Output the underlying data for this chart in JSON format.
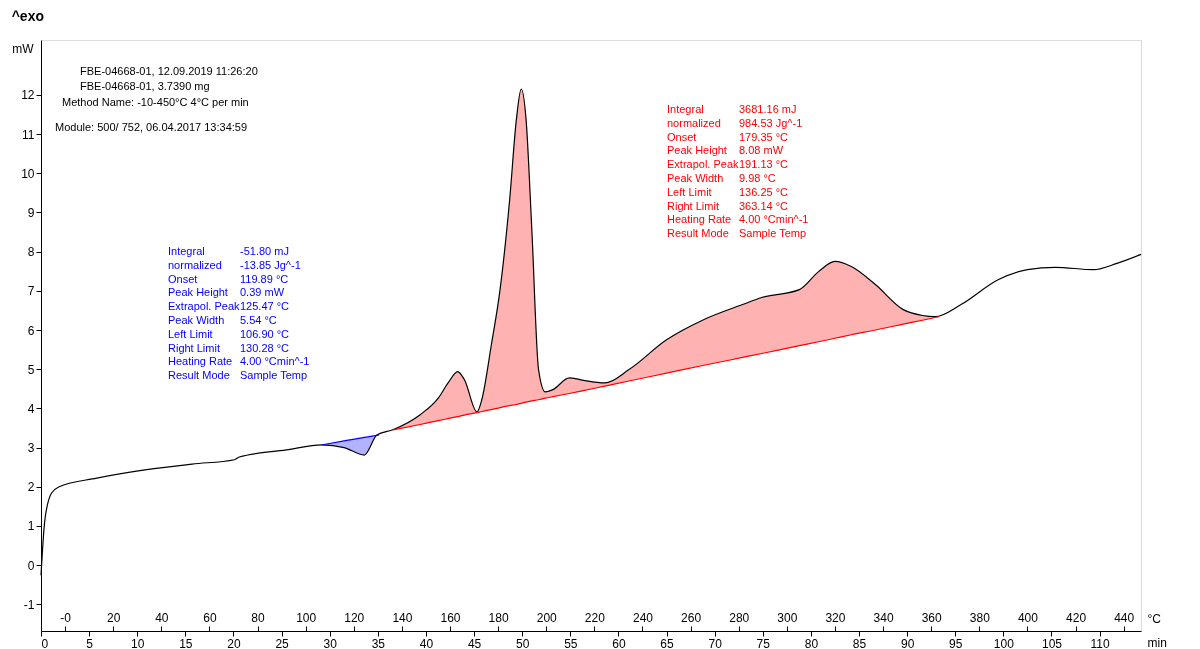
{
  "chart_data": {
    "type": "line",
    "title": "^exo",
    "ylabel": "mW",
    "xlabel": "min",
    "x2label": "°C",
    "xlim": [
      0,
      114.3
    ],
    "xticks": [
      0,
      5,
      10,
      15,
      20,
      25,
      30,
      35,
      40,
      45,
      50,
      55,
      60,
      65,
      70,
      75,
      80,
      85,
      90,
      95,
      100,
      105,
      110
    ],
    "x2lim": [
      -10,
      447.2
    ],
    "x2ticks": [
      {
        "value": 0,
        "label": "-0"
      },
      20,
      40,
      60,
      80,
      100,
      120,
      140,
      160,
      180,
      200,
      220,
      240,
      260,
      280,
      300,
      320,
      340,
      360,
      380,
      400,
      420,
      440
    ],
    "ylim": [
      -1.68,
      13.4
    ],
    "yticks": [
      -1,
      0,
      1,
      2,
      3,
      4,
      5,
      6,
      7,
      8,
      9,
      10,
      11,
      12
    ],
    "marker": "none",
    "line_style": "solid",
    "series": [
      {
        "color": "#000000",
        "x": [
          0,
          0.4,
          1.1,
          1.9,
          5.8,
          10.8,
          15.7,
          20.1,
          20.6,
          25.5,
          29.2,
          31.5,
          33.6,
          34.9,
          36.5,
          39.4,
          41.3,
          42.3,
          43.3,
          44.0,
          45.3,
          45.8,
          46.8,
          47.7,
          48.7,
          49.4,
          49.9,
          50.4,
          51.0,
          51.7,
          52.4,
          53.2,
          54.9,
          56.1,
          58.6,
          61.1,
          65.0,
          68.9,
          72.9,
          74.9,
          78.8,
          80.8,
          82.5,
          84.2,
          86.7,
          89.6,
          91.6,
          92.9,
          95.6,
          99.5,
          102.5,
          105.4,
          109.4,
          111.8,
          114.3
        ],
        "values": [
          -0.26,
          1.15,
          1.84,
          2.0,
          2.22,
          2.43,
          2.58,
          2.69,
          2.76,
          2.94,
          3.07,
          3.0,
          2.81,
          3.32,
          3.45,
          3.84,
          4.27,
          4.65,
          4.94,
          4.73,
          3.91,
          4.22,
          5.63,
          7.03,
          9.33,
          11.38,
          12.15,
          11.38,
          8.57,
          4.99,
          4.42,
          4.48,
          4.78,
          4.73,
          4.65,
          4.99,
          5.75,
          6.27,
          6.65,
          6.83,
          7.03,
          7.49,
          7.75,
          7.62,
          7.16,
          6.52,
          6.37,
          6.34,
          6.65,
          7.29,
          7.54,
          7.6,
          7.54,
          7.7,
          7.93
        ]
      },
      {
        "color": "#0000ff",
        "x": [
          29.2,
          31.5,
          33.6,
          34.9,
          35.1
        ],
        "values": [
          3.07,
          3.17,
          3.26,
          3.31,
          3.32
        ],
        "lower": [
          3.07,
          3.17,
          3.26,
          3.31,
          3.32
        ],
        "upper": [
          3.07,
          3.0,
          2.81,
          3.32,
          3.32
        ]
      },
      {
        "color": "#ff0000",
        "x": [
          36.6,
          39.4,
          41.3,
          42.3,
          43.3,
          44.0,
          45.3,
          45.8,
          46.8,
          47.7,
          48.7,
          49.4,
          49.9,
          50.4,
          51.0,
          51.7,
          52.4,
          53.2,
          54.9,
          56.1,
          58.6,
          61.1,
          65.0,
          68.9,
          72.9,
          74.9,
          78.8,
          80.8,
          82.5,
          84.2,
          86.7,
          89.6,
          91.6,
          93.3
        ],
        "values": [
          3.45,
          3.59,
          3.69,
          3.74,
          3.79,
          3.83,
          3.89,
          3.92,
          3.97,
          4.02,
          4.07,
          4.1,
          4.13,
          4.16,
          4.19,
          4.22,
          4.26,
          4.3,
          4.38,
          4.44,
          4.57,
          4.7,
          4.9,
          5.1,
          5.3,
          5.4,
          5.6,
          5.7,
          5.79,
          5.88,
          6.0,
          6.15,
          6.25,
          6.34
        ],
        "lower": [
          3.45,
          3.59,
          3.69,
          3.74,
          3.79,
          3.83,
          3.89,
          3.92,
          3.97,
          4.02,
          4.07,
          4.1,
          4.13,
          4.16,
          4.19,
          4.22,
          4.26,
          4.3,
          4.38,
          4.44,
          4.57,
          4.7,
          4.9,
          5.1,
          5.3,
          5.4,
          5.6,
          5.7,
          5.79,
          5.88,
          6.0,
          6.15,
          6.25,
          6.34
        ],
        "upper": [
          3.45,
          3.84,
          4.27,
          4.65,
          4.94,
          4.73,
          3.91,
          4.22,
          5.63,
          7.03,
          9.33,
          11.38,
          12.15,
          11.38,
          8.57,
          4.99,
          4.42,
          4.48,
          4.78,
          4.73,
          4.65,
          4.99,
          5.75,
          6.27,
          6.65,
          6.83,
          7.03,
          7.49,
          7.75,
          7.62,
          7.16,
          6.52,
          6.37,
          6.34
        ]
      }
    ],
    "annotations": [
      "FBE-04668-01, 12.09.2019 11:26:20",
      "FBE-04668-01, 3.7390 mg",
      "Method Name: -10-450°C 4°C per min",
      "Module: 500/ 752, 06.04.2017 13:34:59",
      "Integral",
      "-51.80 mJ",
      "  normalized",
      "-13.85 Jg^-1",
      "Onset",
      "119.89 °C",
      "Peak Height",
      "0.39 mW",
      "Extrapol. Peak",
      "125.47 °C",
      "Peak Width",
      "5.54 °C",
      "Left Limit",
      "106.90 °C",
      "Right Limit",
      "130.28 °C",
      "Heating Rate",
      "4.00 °Cmin^-1",
      "Result Mode",
      "Sample Temp",
      "Integral",
      "3681.16 mJ",
      "  normalized",
      "984.53 Jg^-1",
      "Onset",
      "179.35 °C",
      "Peak Height",
      "8.08 mW",
      "Extrapol. Peak",
      "191.13 °C",
      "Peak Width",
      "9.98 °C",
      "Left Limit",
      "136.25 °C",
      "Right Limit",
      "363.14 °C",
      "Heating Rate",
      "4.00 °Cmin^-1",
      "Result Mode",
      "Sample Temp"
    ]
  }
}
